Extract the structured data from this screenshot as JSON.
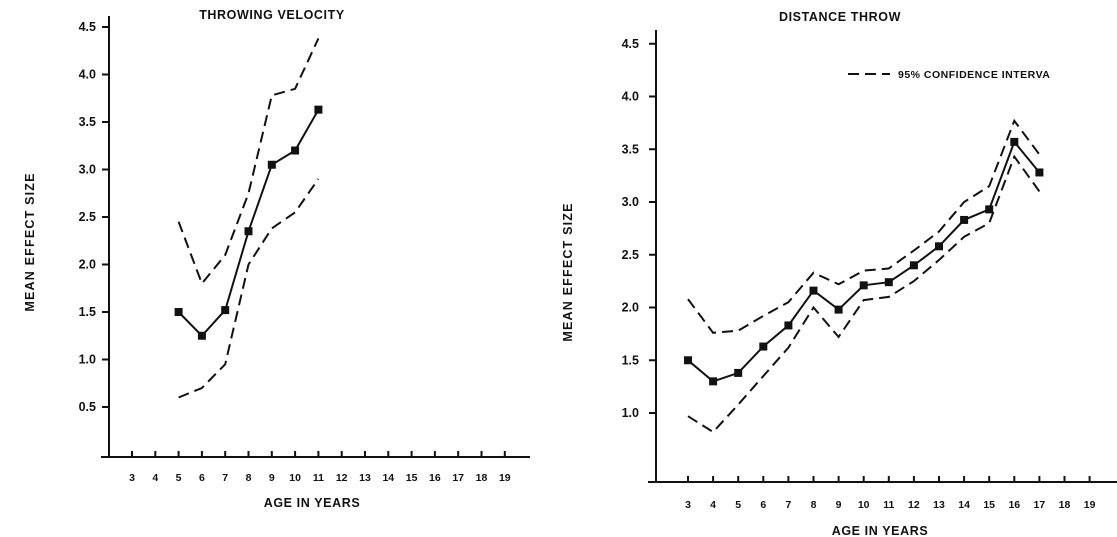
{
  "chart_data": [
    {
      "type": "line",
      "title": "THROWING VELOCITY",
      "xlabel": "AGE IN YEARS",
      "ylabel": "MEAN EFFECT SIZE",
      "x_ticks": [
        "3",
        "4",
        "5",
        "6",
        "7",
        "8",
        "9",
        "10",
        "11",
        "12",
        "13",
        "14",
        "15",
        "16",
        "17",
        "18",
        "19"
      ],
      "y_ticks": [
        "0.5",
        "1.0",
        "1.5",
        "2.0",
        "2.5",
        "3.0",
        "3.5",
        "4.0",
        "4.5"
      ],
      "xlim": [
        2,
        20
      ],
      "ylim": [
        0,
        4.6
      ],
      "grid": false,
      "series": [
        {
          "role": "mean",
          "style": "solid-with-square-markers",
          "x": [
            5,
            6,
            7,
            8,
            9,
            10,
            11
          ],
          "y": [
            1.5,
            1.25,
            1.52,
            2.35,
            3.05,
            3.2,
            3.63
          ]
        },
        {
          "role": "upper",
          "style": "dashed",
          "x": [
            5,
            6,
            7,
            8,
            9,
            10,
            11
          ],
          "y": [
            2.45,
            1.8,
            2.1,
            2.75,
            3.78,
            3.85,
            4.38
          ]
        },
        {
          "role": "lower",
          "style": "dashed",
          "x": [
            5,
            6,
            7,
            8,
            9,
            10,
            11
          ],
          "y": [
            0.6,
            0.7,
            0.95,
            2.0,
            2.38,
            2.55,
            2.9
          ]
        }
      ]
    },
    {
      "type": "line",
      "title": "DISTANCE THROW",
      "xlabel": "AGE IN YEARS",
      "ylabel": "MEAN EFFECT SIZE",
      "legend": {
        "label": "95% CONFIDENCE INTERVA",
        "placement": "top-right"
      },
      "x_ticks": [
        "3",
        "4",
        "5",
        "6",
        "7",
        "8",
        "9",
        "10",
        "11",
        "12",
        "13",
        "14",
        "15",
        "16",
        "17",
        "18",
        "19"
      ],
      "y_ticks": [
        "1.0",
        "1.5",
        "2.0",
        "2.5",
        "3.0",
        "3.5",
        "4.0",
        "4.5"
      ],
      "xlim": [
        2.2,
        20
      ],
      "ylim": [
        0.35,
        4.6
      ],
      "grid": false,
      "series": [
        {
          "role": "mean",
          "style": "solid-with-square-markers",
          "x": [
            3,
            4,
            5,
            6,
            7,
            8,
            9,
            10,
            11,
            12,
            13,
            14,
            15,
            16,
            17
          ],
          "y": [
            1.5,
            1.3,
            1.38,
            1.63,
            1.83,
            2.16,
            1.98,
            2.21,
            2.24,
            2.4,
            2.58,
            2.83,
            2.93,
            3.57,
            3.28
          ]
        },
        {
          "role": "upper",
          "style": "dashed",
          "x": [
            3,
            4,
            5,
            6,
            7,
            8,
            9,
            10,
            11,
            12,
            13,
            14,
            15,
            16,
            17
          ],
          "y": [
            2.08,
            1.76,
            1.78,
            1.92,
            2.05,
            2.33,
            2.22,
            2.35,
            2.37,
            2.54,
            2.72,
            3.0,
            3.15,
            3.77,
            3.45
          ]
        },
        {
          "role": "lower",
          "style": "dashed",
          "x": [
            3,
            4,
            5,
            6,
            7,
            8,
            9,
            10,
            11,
            12,
            13,
            14,
            15,
            16,
            17
          ],
          "y": [
            0.97,
            0.82,
            1.08,
            1.35,
            1.62,
            2.0,
            1.72,
            2.07,
            2.1,
            2.25,
            2.45,
            2.67,
            2.8,
            3.43,
            3.1
          ]
        }
      ]
    }
  ]
}
